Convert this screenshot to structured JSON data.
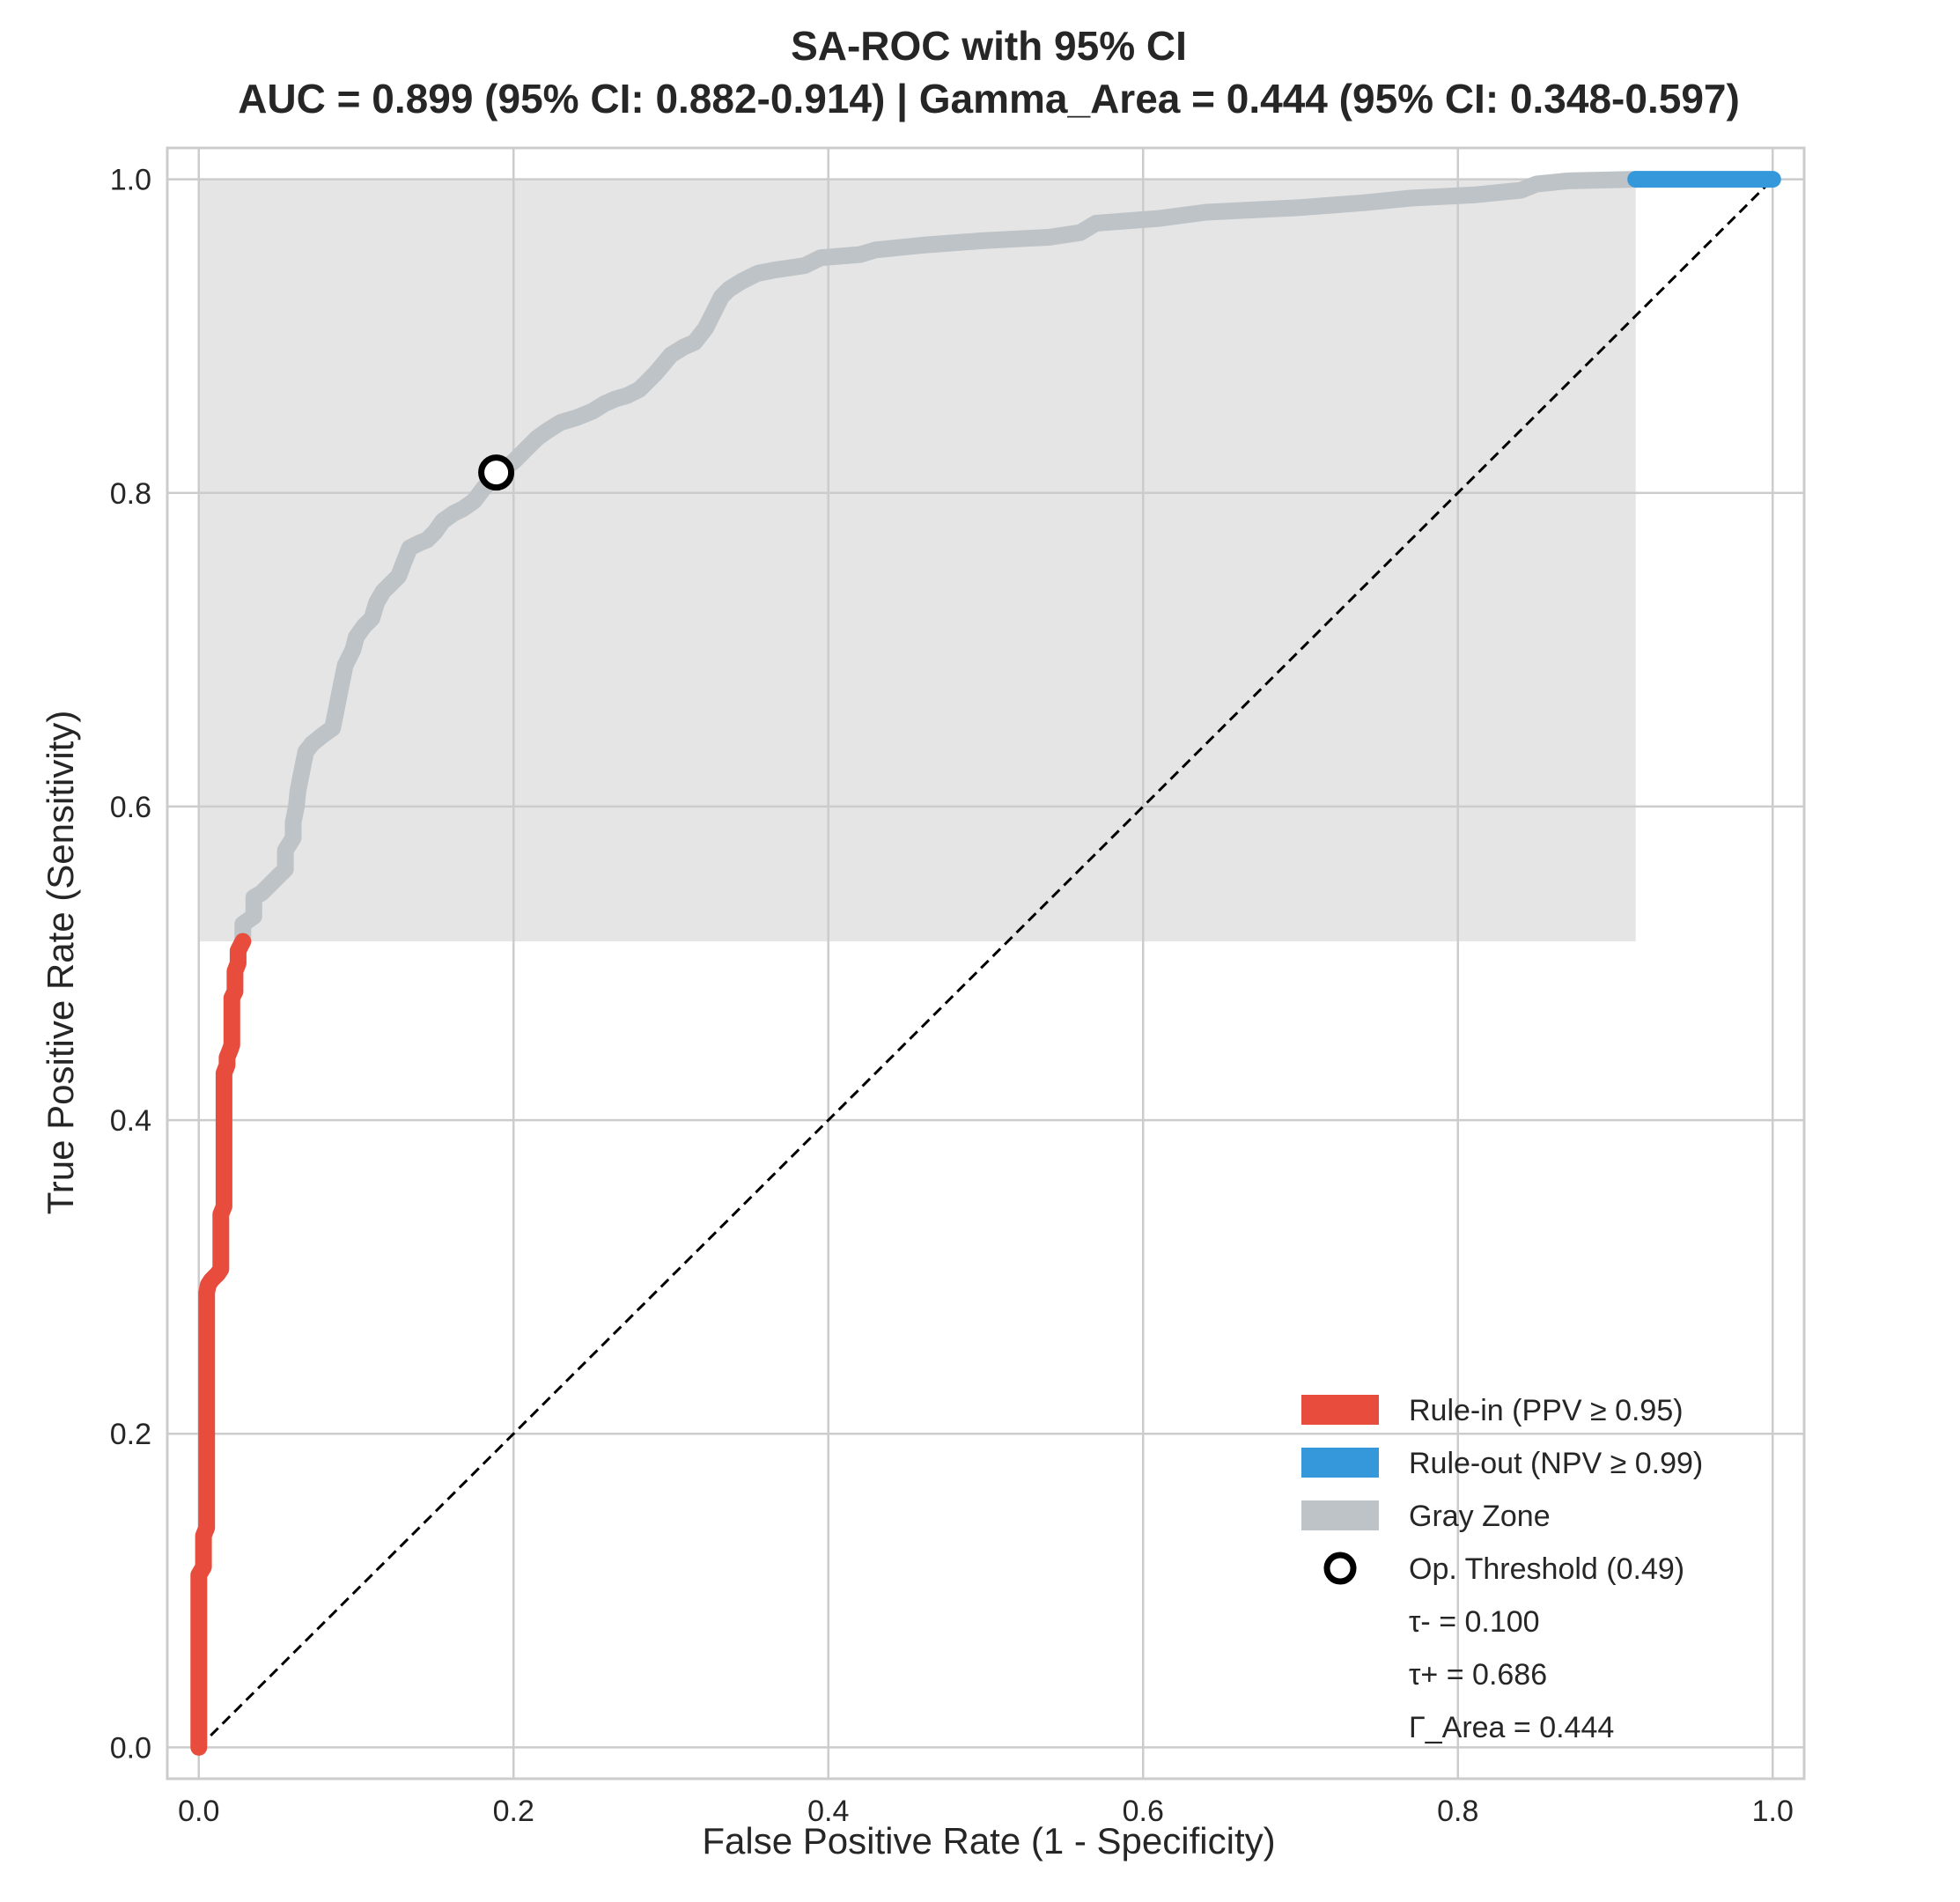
{
  "chart_data": {
    "type": "line",
    "title": "SA-ROC with 95% CI",
    "subtitle": "AUC = 0.899 (95% CI: 0.882-0.914) | Gamma_Area = 0.444 (95% CI: 0.348-0.597)",
    "xlabel": "False Positive Rate (1 - Specificity)",
    "ylabel": "True Positive Rate (Sensitivity)",
    "xlim": [
      -0.02,
      1.02
    ],
    "ylim": [
      -0.02,
      1.02
    ],
    "xticks": [
      "0.0",
      "0.2",
      "0.4",
      "0.6",
      "0.8",
      "1.0"
    ],
    "yticks": [
      "0.0",
      "0.2",
      "0.4",
      "0.6",
      "0.8",
      "1.0"
    ],
    "grid": true,
    "legend_position": "bottom-right",
    "gray_zone_region": {
      "x": [
        0.0,
        0.913
      ],
      "y": [
        0.514,
        1.0
      ]
    },
    "series": [
      {
        "name": "Rule-in (PPV ≥ 0.95)",
        "color": "#e74c3c",
        "points": [
          [
            0.0,
            0.0
          ],
          [
            0.0,
            0.11
          ],
          [
            0.003,
            0.115
          ],
          [
            0.003,
            0.135
          ],
          [
            0.005,
            0.14
          ],
          [
            0.005,
            0.29
          ],
          [
            0.006,
            0.295
          ],
          [
            0.008,
            0.298
          ],
          [
            0.01,
            0.3
          ],
          [
            0.012,
            0.302
          ],
          [
            0.014,
            0.305
          ],
          [
            0.014,
            0.34
          ],
          [
            0.016,
            0.345
          ],
          [
            0.016,
            0.43
          ],
          [
            0.018,
            0.435
          ],
          [
            0.018,
            0.44
          ],
          [
            0.02,
            0.445
          ],
          [
            0.021,
            0.448
          ],
          [
            0.021,
            0.478
          ],
          [
            0.023,
            0.482
          ],
          [
            0.023,
            0.495
          ],
          [
            0.025,
            0.5
          ],
          [
            0.025,
            0.508
          ],
          [
            0.027,
            0.512
          ],
          [
            0.028,
            0.514
          ]
        ]
      },
      {
        "name": "Rule-out (NPV ≥ 0.99)",
        "color": "#3498db",
        "points": [
          [
            0.913,
            1.0
          ],
          [
            1.0,
            1.0
          ]
        ]
      },
      {
        "name": "Gray Zone",
        "color": "#bdc3c7",
        "points": [
          [
            0.028,
            0.514
          ],
          [
            0.028,
            0.525
          ],
          [
            0.035,
            0.53
          ],
          [
            0.035,
            0.542
          ],
          [
            0.04,
            0.545
          ],
          [
            0.045,
            0.55
          ],
          [
            0.05,
            0.555
          ],
          [
            0.055,
            0.56
          ],
          [
            0.055,
            0.572
          ],
          [
            0.06,
            0.58
          ],
          [
            0.06,
            0.59
          ],
          [
            0.062,
            0.6
          ],
          [
            0.063,
            0.61
          ],
          [
            0.065,
            0.62
          ],
          [
            0.068,
            0.635
          ],
          [
            0.072,
            0.64
          ],
          [
            0.078,
            0.645
          ],
          [
            0.085,
            0.65
          ],
          [
            0.087,
            0.66
          ],
          [
            0.09,
            0.675
          ],
          [
            0.093,
            0.69
          ],
          [
            0.098,
            0.7
          ],
          [
            0.1,
            0.708
          ],
          [
            0.105,
            0.715
          ],
          [
            0.11,
            0.72
          ],
          [
            0.113,
            0.73
          ],
          [
            0.117,
            0.737
          ],
          [
            0.122,
            0.742
          ],
          [
            0.127,
            0.747
          ],
          [
            0.13,
            0.755
          ],
          [
            0.134,
            0.765
          ],
          [
            0.14,
            0.768
          ],
          [
            0.145,
            0.77
          ],
          [
            0.15,
            0.775
          ],
          [
            0.155,
            0.782
          ],
          [
            0.162,
            0.787
          ],
          [
            0.168,
            0.79
          ],
          [
            0.175,
            0.795
          ],
          [
            0.181,
            0.803
          ],
          [
            0.19,
            0.812
          ],
          [
            0.2,
            0.82
          ],
          [
            0.208,
            0.828
          ],
          [
            0.215,
            0.835
          ],
          [
            0.222,
            0.84
          ],
          [
            0.23,
            0.845
          ],
          [
            0.24,
            0.848
          ],
          [
            0.25,
            0.852
          ],
          [
            0.258,
            0.857
          ],
          [
            0.265,
            0.86
          ],
          [
            0.272,
            0.862
          ],
          [
            0.28,
            0.866
          ],
          [
            0.285,
            0.871
          ],
          [
            0.29,
            0.876
          ],
          [
            0.295,
            0.882
          ],
          [
            0.3,
            0.888
          ],
          [
            0.308,
            0.893
          ],
          [
            0.315,
            0.896
          ],
          [
            0.322,
            0.905
          ],
          [
            0.327,
            0.915
          ],
          [
            0.332,
            0.925
          ],
          [
            0.337,
            0.93
          ],
          [
            0.345,
            0.935
          ],
          [
            0.355,
            0.94
          ],
          [
            0.365,
            0.942
          ],
          [
            0.385,
            0.945
          ],
          [
            0.395,
            0.95
          ],
          [
            0.42,
            0.952
          ],
          [
            0.43,
            0.955
          ],
          [
            0.46,
            0.958
          ],
          [
            0.5,
            0.961
          ],
          [
            0.54,
            0.963
          ],
          [
            0.56,
            0.966
          ],
          [
            0.57,
            0.972
          ],
          [
            0.61,
            0.975
          ],
          [
            0.64,
            0.979
          ],
          [
            0.7,
            0.982
          ],
          [
            0.74,
            0.985
          ],
          [
            0.77,
            0.988
          ],
          [
            0.81,
            0.99
          ],
          [
            0.84,
            0.993
          ],
          [
            0.85,
            0.997
          ],
          [
            0.87,
            0.999
          ],
          [
            0.913,
            1.0
          ]
        ]
      }
    ],
    "reference_line": {
      "points": [
        [
          0.0,
          0.0
        ],
        [
          1.0,
          1.0
        ]
      ],
      "color": "#000000",
      "style": "dashed"
    },
    "operating_point": {
      "label": "Op. Threshold (0.49)",
      "fpr": 0.189,
      "tpr": 0.813
    },
    "legend": {
      "entries": [
        {
          "label": "Rule-in (PPV ≥ 0.95)",
          "color": "#e74c3c",
          "kind": "patch"
        },
        {
          "label": "Rule-out (NPV ≥ 0.99)",
          "color": "#3498db",
          "kind": "patch"
        },
        {
          "label": "Gray Zone",
          "color": "#bdc3c7",
          "kind": "patch"
        },
        {
          "label": "Op. Threshold (0.49)",
          "color": "#000000",
          "kind": "marker"
        },
        {
          "label": "τ- = 0.100",
          "kind": "text"
        },
        {
          "label": "τ+ = 0.686",
          "kind": "text"
        },
        {
          "label": "Γ_Area = 0.444",
          "kind": "text"
        }
      ]
    }
  }
}
